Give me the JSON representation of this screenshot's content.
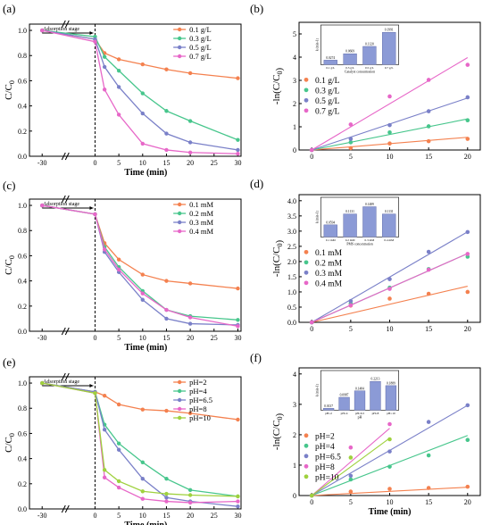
{
  "panels": [
    {
      "label": "(a)",
      "kind": "decay",
      "xlabel": "Time (min)",
      "ylabel": "C/C0",
      "xticks": [
        "-30",
        "0",
        "5",
        "10",
        "15",
        "20",
        "25",
        "30"
      ],
      "yticks": [
        "0.0",
        "0.2",
        "0.4",
        "0.6",
        "0.8",
        "1.0"
      ],
      "annotation": "Adsorption stage",
      "legend": [
        "0.1 g/L",
        "0.3 g/L",
        "0.5 g/L",
        "0.7 g/L"
      ],
      "colors": [
        "#f4814f",
        "#47c68c",
        "#7a80c8",
        "#e767c8"
      ]
    },
    {
      "label": "(b)",
      "kind": "kinetic",
      "xlabel": "",
      "ylabel": "-ln(C/C0)",
      "xticks": [
        "0",
        "5",
        "10",
        "15",
        "20"
      ],
      "yticks": [
        "0",
        "1",
        "2",
        "3",
        "4",
        "5"
      ],
      "legend": [
        "0.1 g/L",
        "0.3 g/L",
        "0.5 g/L",
        "0.7 g/L"
      ],
      "colors": [
        "#f4814f",
        "#47c68c",
        "#7a80c8",
        "#e767c8"
      ],
      "inset": {
        "values_text": [
          "0.0274",
          "0.0669",
          "0.1120",
          "0.1991"
        ],
        "cats": [
          "0.1 g/L",
          "0.3 g/L",
          "0.5 g/L",
          "0.7 g/L"
        ],
        "xlabel": "Catalyst concentration",
        "ylabel": "k (min-1)"
      }
    },
    {
      "label": "(c)",
      "kind": "decay",
      "xlabel": "Time (min)",
      "ylabel": "C/C0",
      "xticks": [
        "-30",
        "0",
        "5",
        "10",
        "15",
        "20",
        "25",
        "30"
      ],
      "yticks": [
        "0.0",
        "0.2",
        "0.4",
        "0.6",
        "0.8",
        "1.0"
      ],
      "annotation": "Adsorption stage",
      "legend": [
        "0.1 mM",
        "0.2 mM",
        "0.3 mM",
        "0.4 mM"
      ],
      "colors": [
        "#f4814f",
        "#47c68c",
        "#7a80c8",
        "#e767c8"
      ]
    },
    {
      "label": "(d)",
      "kind": "kinetic",
      "xlabel": "",
      "ylabel": "-ln(C/C0)",
      "xticks": [
        "0",
        "5",
        "10",
        "15",
        "20"
      ],
      "yticks": [
        "0.0",
        "0.5",
        "1.0",
        "1.5",
        "2.0",
        "2.5",
        "3.0",
        "3.5",
        "4.0"
      ],
      "legend": [
        "0.1 mM",
        "0.2 mM",
        "0.3 mM",
        "0.4 mM"
      ],
      "colors": [
        "#f4814f",
        "#47c68c",
        "#7a80c8",
        "#e767c8"
      ],
      "inset": {
        "values_text": [
          "0.0594",
          "0.1131",
          "0.1489",
          "0.1131"
        ],
        "cats": [
          "0.1 mM",
          "0.2 mM",
          "0.3 mM",
          "0.4 mM"
        ],
        "xlabel": "PMS concentration",
        "ylabel": "k (min-1)"
      }
    },
    {
      "label": "(e)",
      "kind": "decay",
      "xlabel": "Time (min)",
      "ylabel": "C/C0",
      "xticks": [
        "-30",
        "0",
        "5",
        "10",
        "15",
        "20",
        "25",
        "30"
      ],
      "yticks": [
        "0.0",
        "0.2",
        "0.4",
        "0.6",
        "0.8",
        "1.0"
      ],
      "annotation": "Adsorption stage",
      "legend": [
        "pH=2",
        "pH=4",
        "pH=6.5",
        "pH=8",
        "pH=10"
      ],
      "colors": [
        "#f4814f",
        "#47c68c",
        "#7a80c8",
        "#e767c8",
        "#9fd13e"
      ]
    },
    {
      "label": "(f)",
      "kind": "kinetic",
      "xlabel": "Time (min)",
      "ylabel": "-ln(C/C0)",
      "xticks": [
        "0",
        "5",
        "10",
        "15",
        "20"
      ],
      "yticks": [
        "0",
        "1",
        "2",
        "3",
        "4"
      ],
      "legend": [
        "pH=2",
        "pH=4",
        "pH=6.5",
        "pH=8",
        "pH=10"
      ],
      "colors": [
        "#f4814f",
        "#47c68c",
        "#7a80c8",
        "#e767c8",
        "#9fd13e"
      ],
      "inset": {
        "values_text": [
          "0.0137",
          "0.0987",
          "0.1484",
          "0.2213",
          "0.1889"
        ],
        "cats": [
          "pH=2",
          "pH=4",
          "pH=6.5",
          "pH=8",
          "pH=10"
        ],
        "xlabel": "pH",
        "ylabel": "k (min-1)"
      }
    }
  ],
  "chart_data": [
    {
      "type": "line",
      "panel": "(a)",
      "xlabel": "Time (min)",
      "ylabel": "C/C0",
      "xlim": [
        -30,
        30
      ],
      "ylim": [
        0,
        1.05
      ],
      "x": [
        -30,
        0,
        2,
        5,
        10,
        15,
        20,
        30
      ],
      "series": [
        {
          "name": "0.1 g/L",
          "values": [
            1.0,
            0.93,
            0.82,
            0.77,
            0.73,
            0.69,
            0.66,
            0.62
          ]
        },
        {
          "name": "0.3 g/L",
          "values": [
            1.0,
            0.95,
            0.79,
            0.68,
            0.5,
            0.36,
            0.28,
            0.13
          ]
        },
        {
          "name": "0.5 g/L",
          "values": [
            1.0,
            0.93,
            0.71,
            0.55,
            0.34,
            0.18,
            0.11,
            0.05
          ]
        },
        {
          "name": "0.7 g/L",
          "values": [
            1.0,
            0.91,
            0.53,
            0.33,
            0.1,
            0.05,
            0.03,
            0.02
          ]
        }
      ]
    },
    {
      "type": "scatter",
      "panel": "(b)",
      "ylabel": "-ln(C/C0)",
      "xlim": [
        0,
        20
      ],
      "ylim": [
        0,
        5.5
      ],
      "x": [
        0,
        5,
        10,
        15,
        20
      ],
      "series": [
        {
          "name": "0.1 g/L",
          "values": [
            0,
            0.08,
            0.28,
            0.38,
            0.48
          ],
          "slope": 0.0274
        },
        {
          "name": "0.3 g/L",
          "values": [
            0,
            0.33,
            0.76,
            1.02,
            1.28
          ],
          "slope": 0.0669
        },
        {
          "name": "0.5 g/L",
          "values": [
            0,
            0.48,
            1.07,
            1.67,
            2.27
          ],
          "slope": 0.112
        },
        {
          "name": "0.7 g/L",
          "values": [
            0,
            1.1,
            2.31,
            3.02,
            3.67
          ],
          "slope": 0.1991
        }
      ],
      "inset": {
        "type": "bar",
        "categories": [
          "0.1 g/L",
          "0.3 g/L",
          "0.5 g/L",
          "0.7 g/L"
        ],
        "values": [
          0.0274,
          0.0669,
          0.112,
          0.1991
        ],
        "ylim": [
          0,
          0.2
        ]
      }
    },
    {
      "type": "line",
      "panel": "(c)",
      "xlabel": "Time (min)",
      "ylabel": "C/C0",
      "xlim": [
        -30,
        30
      ],
      "ylim": [
        0,
        1.05
      ],
      "x": [
        -30,
        0,
        2,
        5,
        10,
        15,
        20,
        30
      ],
      "series": [
        {
          "name": "0.1 mM",
          "values": [
            1.0,
            0.93,
            0.7,
            0.57,
            0.45,
            0.4,
            0.38,
            0.34
          ]
        },
        {
          "name": "0.2 mM",
          "values": [
            1.0,
            0.93,
            0.67,
            0.51,
            0.32,
            0.17,
            0.12,
            0.09
          ]
        },
        {
          "name": "0.3 mM",
          "values": [
            1.0,
            0.93,
            0.63,
            0.47,
            0.25,
            0.1,
            0.06,
            0.05
          ]
        },
        {
          "name": "0.4 mM",
          "values": [
            1.0,
            0.93,
            0.65,
            0.49,
            0.3,
            0.17,
            0.11,
            0.04
          ]
        }
      ]
    },
    {
      "type": "scatter",
      "panel": "(d)",
      "ylabel": "-ln(C/C0)",
      "xlim": [
        0,
        20
      ],
      "ylim": [
        0,
        4.2
      ],
      "x": [
        0,
        5,
        10,
        15,
        20
      ],
      "series": [
        {
          "name": "0.1 mM",
          "values": [
            0,
            0.55,
            0.78,
            0.94,
            1.0
          ],
          "slope": 0.0594
        },
        {
          "name": "0.2 mM",
          "values": [
            0,
            0.62,
            1.14,
            1.75,
            2.16
          ],
          "slope": 0.1131
        },
        {
          "name": "0.3 mM",
          "values": [
            0,
            0.7,
            1.42,
            2.32,
            2.97
          ],
          "slope": 0.1489
        },
        {
          "name": "0.4 mM",
          "values": [
            0,
            0.56,
            1.1,
            1.73,
            2.25
          ],
          "slope": 0.1131
        }
      ],
      "inset": {
        "type": "bar",
        "categories": [
          "0.1 mM",
          "0.2 mM",
          "0.3 mM",
          "0.4 mM"
        ],
        "values": [
          0.0594,
          0.1131,
          0.1489,
          0.1131
        ],
        "ylim": [
          0,
          0.16
        ]
      }
    },
    {
      "type": "line",
      "panel": "(e)",
      "xlabel": "Time (min)",
      "ylabel": "C/C0",
      "xlim": [
        -30,
        30
      ],
      "ylim": [
        0,
        1.05
      ],
      "x": [
        -30,
        0,
        2,
        5,
        10,
        15,
        20,
        30
      ],
      "series": [
        {
          "name": "pH=2",
          "values": [
            1.0,
            0.93,
            0.9,
            0.83,
            0.79,
            0.78,
            0.76,
            0.71
          ]
        },
        {
          "name": "pH=4",
          "values": [
            1.0,
            0.93,
            0.67,
            0.52,
            0.37,
            0.24,
            0.15,
            0.1
          ]
        },
        {
          "name": "pH=6.5",
          "values": [
            1.0,
            0.93,
            0.63,
            0.47,
            0.24,
            0.09,
            0.06,
            0.02
          ]
        },
        {
          "name": "pH=8",
          "values": [
            1.0,
            0.92,
            0.25,
            0.17,
            0.08,
            0.06,
            0.05,
            0.06
          ]
        },
        {
          "name": "pH=10",
          "values": [
            1.0,
            0.92,
            0.31,
            0.22,
            0.14,
            0.12,
            0.11,
            0.1
          ]
        }
      ]
    },
    {
      "type": "scatter",
      "panel": "(f)",
      "xlabel": "Time (min)",
      "ylabel": "-ln(C/C0)",
      "xlim": [
        0,
        20
      ],
      "ylim": [
        0,
        4.2
      ],
      "x": [
        0,
        5,
        10,
        15,
        20
      ],
      "series": [
        {
          "name": "pH=2",
          "values": [
            0,
            0.13,
            0.22,
            0.25,
            0.29
          ],
          "slope": 0.0137
        },
        {
          "name": "pH=4",
          "values": [
            0,
            0.53,
            0.95,
            1.32,
            1.83
          ],
          "slope": 0.0987
        },
        {
          "name": "pH=6.5",
          "values": [
            0,
            0.65,
            1.45,
            2.42,
            2.97
          ],
          "slope": 0.1484
        },
        {
          "name": "pH=8",
          "values": [
            0,
            1.58,
            2.35,
            null,
            null
          ],
          "slope": 0.2213
        },
        {
          "name": "pH=10",
          "values": [
            0,
            1.25,
            1.85,
            null,
            null
          ],
          "slope": 0.1889
        }
      ],
      "inset": {
        "type": "bar",
        "categories": [
          "pH=2",
          "pH=4",
          "pH=6.5",
          "pH=8",
          "pH=10"
        ],
        "values": [
          0.0137,
          0.0987,
          0.1484,
          0.2213,
          0.1889
        ],
        "ylim": [
          0,
          0.25
        ]
      }
    }
  ]
}
